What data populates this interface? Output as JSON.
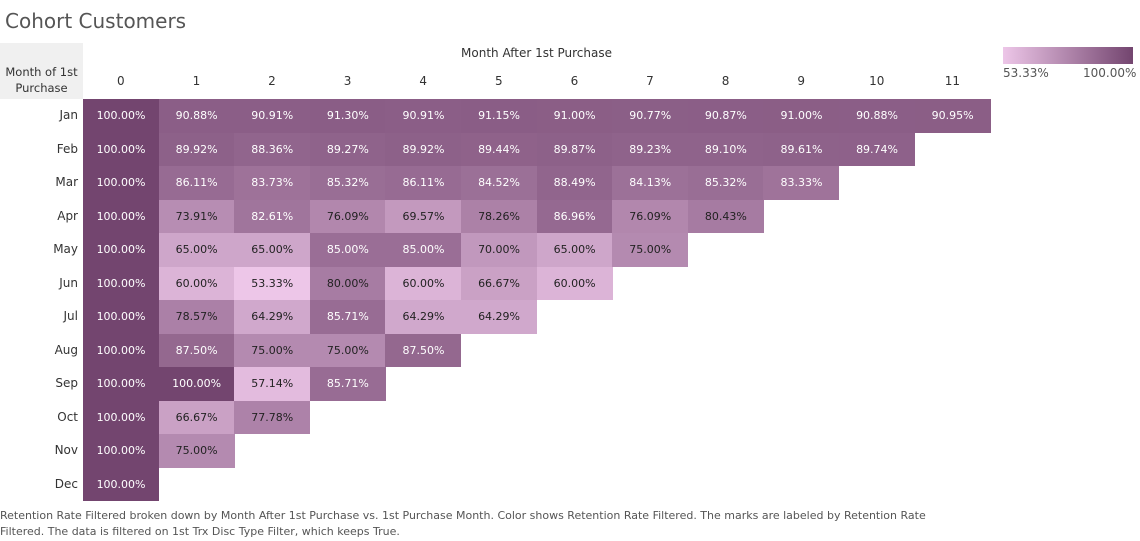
{
  "title": "Cohort Customers",
  "caption": "Retention Rate Filtered broken down by Month After 1st Purchase vs. 1st Purchase Month.  Color shows Retention Rate Filtered.  The marks are labeled by Retention Rate Filtered. The data is filtered on 1st Trx Disc Type Filter, which keeps True.",
  "colors": {
    "low": "#edc6e8",
    "high": "#73456f",
    "text_dark": "#222222",
    "text_light": "#ffffff"
  },
  "chart_data": {
    "type": "heatmap",
    "title": "Cohort Customers",
    "xlabel": "Month After 1st Purchase",
    "ylabel": "Month of 1st Purchase",
    "x": [
      "0",
      "1",
      "2",
      "3",
      "4",
      "5",
      "6",
      "7",
      "8",
      "9",
      "10",
      "11"
    ],
    "y": [
      "Jan",
      "Feb",
      "Mar",
      "Apr",
      "May",
      "Jun",
      "Jul",
      "Aug",
      "Sep",
      "Oct",
      "Nov",
      "Dec"
    ],
    "values": [
      [
        100.0,
        90.88,
        90.91,
        91.3,
        90.91,
        91.15,
        91.0,
        90.77,
        90.87,
        91.0,
        90.88,
        90.95
      ],
      [
        100.0,
        89.92,
        88.36,
        89.27,
        89.92,
        89.44,
        89.87,
        89.23,
        89.1,
        89.61,
        89.74
      ],
      [
        100.0,
        86.11,
        83.73,
        85.32,
        86.11,
        84.52,
        88.49,
        84.13,
        85.32,
        83.33
      ],
      [
        100.0,
        73.91,
        82.61,
        76.09,
        69.57,
        78.26,
        86.96,
        76.09,
        80.43
      ],
      [
        100.0,
        65.0,
        65.0,
        85.0,
        85.0,
        70.0,
        65.0,
        75.0
      ],
      [
        100.0,
        60.0,
        53.33,
        80.0,
        60.0,
        66.67,
        60.0
      ],
      [
        100.0,
        78.57,
        64.29,
        85.71,
        64.29,
        64.29
      ],
      [
        100.0,
        87.5,
        75.0,
        75.0,
        87.5
      ],
      [
        100.0,
        100.0,
        57.14,
        85.71
      ],
      [
        100.0,
        66.67,
        77.78
      ],
      [
        100.0,
        75.0
      ],
      [
        100.0
      ]
    ],
    "labels": [
      [
        "100.00%",
        "90.88%",
        "90.91%",
        "91.30%",
        "90.91%",
        "91.15%",
        "91.00%",
        "90.77%",
        "90.87%",
        "91.00%",
        "90.88%",
        "90.95%"
      ],
      [
        "100.00%",
        "89.92%",
        "88.36%",
        "89.27%",
        "89.92%",
        "89.44%",
        "89.87%",
        "89.23%",
        "89.10%",
        "89.61%",
        "89.74%"
      ],
      [
        "100.00%",
        "86.11%",
        "83.73%",
        "85.32%",
        "86.11%",
        "84.52%",
        "88.49%",
        "84.13%",
        "85.32%",
        "83.33%"
      ],
      [
        "100.00%",
        "73.91%",
        "82.61%",
        "76.09%",
        "69.57%",
        "78.26%",
        "86.96%",
        "76.09%",
        "80.43%"
      ],
      [
        "100.00%",
        "65.00%",
        "65.00%",
        "85.00%",
        "85.00%",
        "70.00%",
        "65.00%",
        "75.00%"
      ],
      [
        "100.00%",
        "60.00%",
        "53.33%",
        "80.00%",
        "60.00%",
        "66.67%",
        "60.00%"
      ],
      [
        "100.00%",
        "78.57%",
        "64.29%",
        "85.71%",
        "64.29%",
        "64.29%"
      ],
      [
        "100.00%",
        "87.50%",
        "75.00%",
        "75.00%",
        "87.50%"
      ],
      [
        "100.00%",
        "100.00%",
        "57.14%",
        "85.71%"
      ],
      [
        "100.00%",
        "66.67%",
        "77.78%"
      ],
      [
        "100.00%",
        "75.00%"
      ],
      [
        "100.00%"
      ]
    ],
    "color_range": [
      53.33,
      100.0
    ],
    "legend": {
      "min_label": "53.33%",
      "max_label": "100.00%",
      "position": "top-right"
    }
  },
  "corner_label": "Month of 1st\nPurchase"
}
